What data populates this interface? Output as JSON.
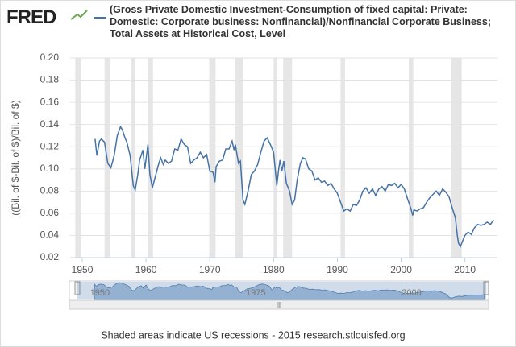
{
  "chart_data": {
    "type": "line",
    "logo": "FRED",
    "ylabel": "((Bil. of $-Bil. of $)/Bil. of $)",
    "footer": "Shaded areas indicate US recessions - 2015 research.stlouisfed.org",
    "xlim": [
      1948.1,
      2015.1
    ],
    "ylim": [
      0.02,
      0.2
    ],
    "xticks": [
      1950,
      1960,
      1970,
      1980,
      1990,
      2000,
      2010
    ],
    "yticks": [
      0.02,
      0.04,
      0.06,
      0.08,
      {
        "value": 0.1,
        "label": "0.10"
      },
      0.12,
      0.14,
      0.16,
      0.18,
      {
        "value": 0.2,
        "label": "0.20"
      }
    ],
    "grid": true,
    "recessions": [
      [
        1948.9,
        1949.8
      ],
      [
        1953.5,
        1954.4
      ],
      [
        1957.6,
        1958.3
      ],
      [
        1960.3,
        1961.1
      ],
      [
        1969.9,
        1970.9
      ],
      [
        1973.9,
        1975.2
      ],
      [
        1980.0,
        1980.5
      ],
      [
        1981.5,
        1982.9
      ],
      [
        1990.5,
        1991.2
      ],
      [
        2001.2,
        2001.9
      ],
      [
        2007.9,
        2009.5
      ]
    ],
    "recession_color": "#e6e6e6",
    "navigator": {
      "xticks": [
        1950,
        1975,
        2000
      ]
    },
    "series": [
      {
        "name": "(Gross Private Domestic Investment-Consumption of fixed capital: Private: Domestic: Corporate business: Nonfinancial)/Nonfinancial Corporate Business; Total Assets at Historical Cost, Level",
        "color": "#4572a7",
        "x": [
          1952.0,
          1952.3,
          1952.7,
          1953.0,
          1953.5,
          1954.0,
          1954.5,
          1955.0,
          1955.5,
          1956.0,
          1956.3,
          1956.7,
          1957.0,
          1957.5,
          1958.0,
          1958.3,
          1958.7,
          1959.0,
          1959.5,
          1959.8,
          1960.3,
          1960.6,
          1961.0,
          1961.5,
          1962.0,
          1962.3,
          1962.7,
          1963.0,
          1963.5,
          1964.0,
          1964.5,
          1965.0,
          1965.5,
          1966.0,
          1966.5,
          1967.0,
          1967.5,
          1968.0,
          1968.5,
          1969.0,
          1969.5,
          1970.0,
          1970.5,
          1970.8,
          1971.0,
          1971.5,
          1972.0,
          1972.5,
          1973.0,
          1973.5,
          1973.8,
          1974.0,
          1974.5,
          1974.8,
          1975.2,
          1975.5,
          1976.0,
          1976.5,
          1977.0,
          1977.5,
          1978.0,
          1978.5,
          1979.0,
          1979.5,
          1980.0,
          1980.5,
          1980.8,
          1981.0,
          1981.3,
          1981.6,
          1982.0,
          1982.5,
          1982.9,
          1983.3,
          1983.7,
          1984.2,
          1984.6,
          1985.0,
          1985.5,
          1986.0,
          1986.5,
          1987.0,
          1987.5,
          1988.0,
          1988.5,
          1989.0,
          1989.5,
          1990.0,
          1990.5,
          1991.0,
          1991.5,
          1992.0,
          1992.5,
          1993.0,
          1993.5,
          1994.0,
          1994.5,
          1995.0,
          1995.5,
          1996.0,
          1996.5,
          1997.0,
          1997.5,
          1998.0,
          1998.5,
          1999.0,
          1999.5,
          2000.0,
          2000.5,
          2001.0,
          2001.5,
          2001.8,
          2002.0,
          2002.5,
          2003.0,
          2003.5,
          2004.0,
          2004.5,
          2005.0,
          2005.5,
          2006.0,
          2006.5,
          2007.0,
          2007.5,
          2008.0,
          2008.5,
          2008.8,
          2009.0,
          2009.3,
          2009.7,
          2010.0,
          2010.5,
          2011.0,
          2011.5,
          2012.0,
          2012.5,
          2013.0,
          2013.5,
          2014.0,
          2014.5
        ],
        "values": [
          0.127,
          0.112,
          0.125,
          0.127,
          0.124,
          0.105,
          0.101,
          0.112,
          0.13,
          0.138,
          0.135,
          0.128,
          0.124,
          0.112,
          0.085,
          0.081,
          0.095,
          0.108,
          0.117,
          0.1,
          0.122,
          0.095,
          0.083,
          0.094,
          0.105,
          0.11,
          0.104,
          0.108,
          0.105,
          0.107,
          0.118,
          0.117,
          0.127,
          0.122,
          0.12,
          0.105,
          0.108,
          0.11,
          0.115,
          0.11,
          0.113,
          0.098,
          0.097,
          0.088,
          0.102,
          0.107,
          0.108,
          0.118,
          0.118,
          0.125,
          0.117,
          0.122,
          0.105,
          0.107,
          0.072,
          0.068,
          0.08,
          0.095,
          0.098,
          0.104,
          0.115,
          0.125,
          0.128,
          0.122,
          0.115,
          0.085,
          0.1,
          0.108,
          0.098,
          0.107,
          0.087,
          0.08,
          0.068,
          0.072,
          0.09,
          0.105,
          0.11,
          0.109,
          0.1,
          0.098,
          0.09,
          0.092,
          0.088,
          0.089,
          0.085,
          0.087,
          0.082,
          0.078,
          0.07,
          0.062,
          0.064,
          0.062,
          0.068,
          0.067,
          0.072,
          0.08,
          0.083,
          0.078,
          0.082,
          0.076,
          0.082,
          0.084,
          0.08,
          0.086,
          0.085,
          0.087,
          0.083,
          0.086,
          0.082,
          0.073,
          0.065,
          0.058,
          0.063,
          0.062,
          0.064,
          0.065,
          0.07,
          0.074,
          0.077,
          0.08,
          0.076,
          0.082,
          0.079,
          0.075,
          0.065,
          0.056,
          0.04,
          0.033,
          0.03,
          0.036,
          0.04,
          0.043,
          0.041,
          0.047,
          0.05,
          0.049,
          0.05,
          0.052,
          0.05,
          0.054
        ]
      }
    ]
  }
}
